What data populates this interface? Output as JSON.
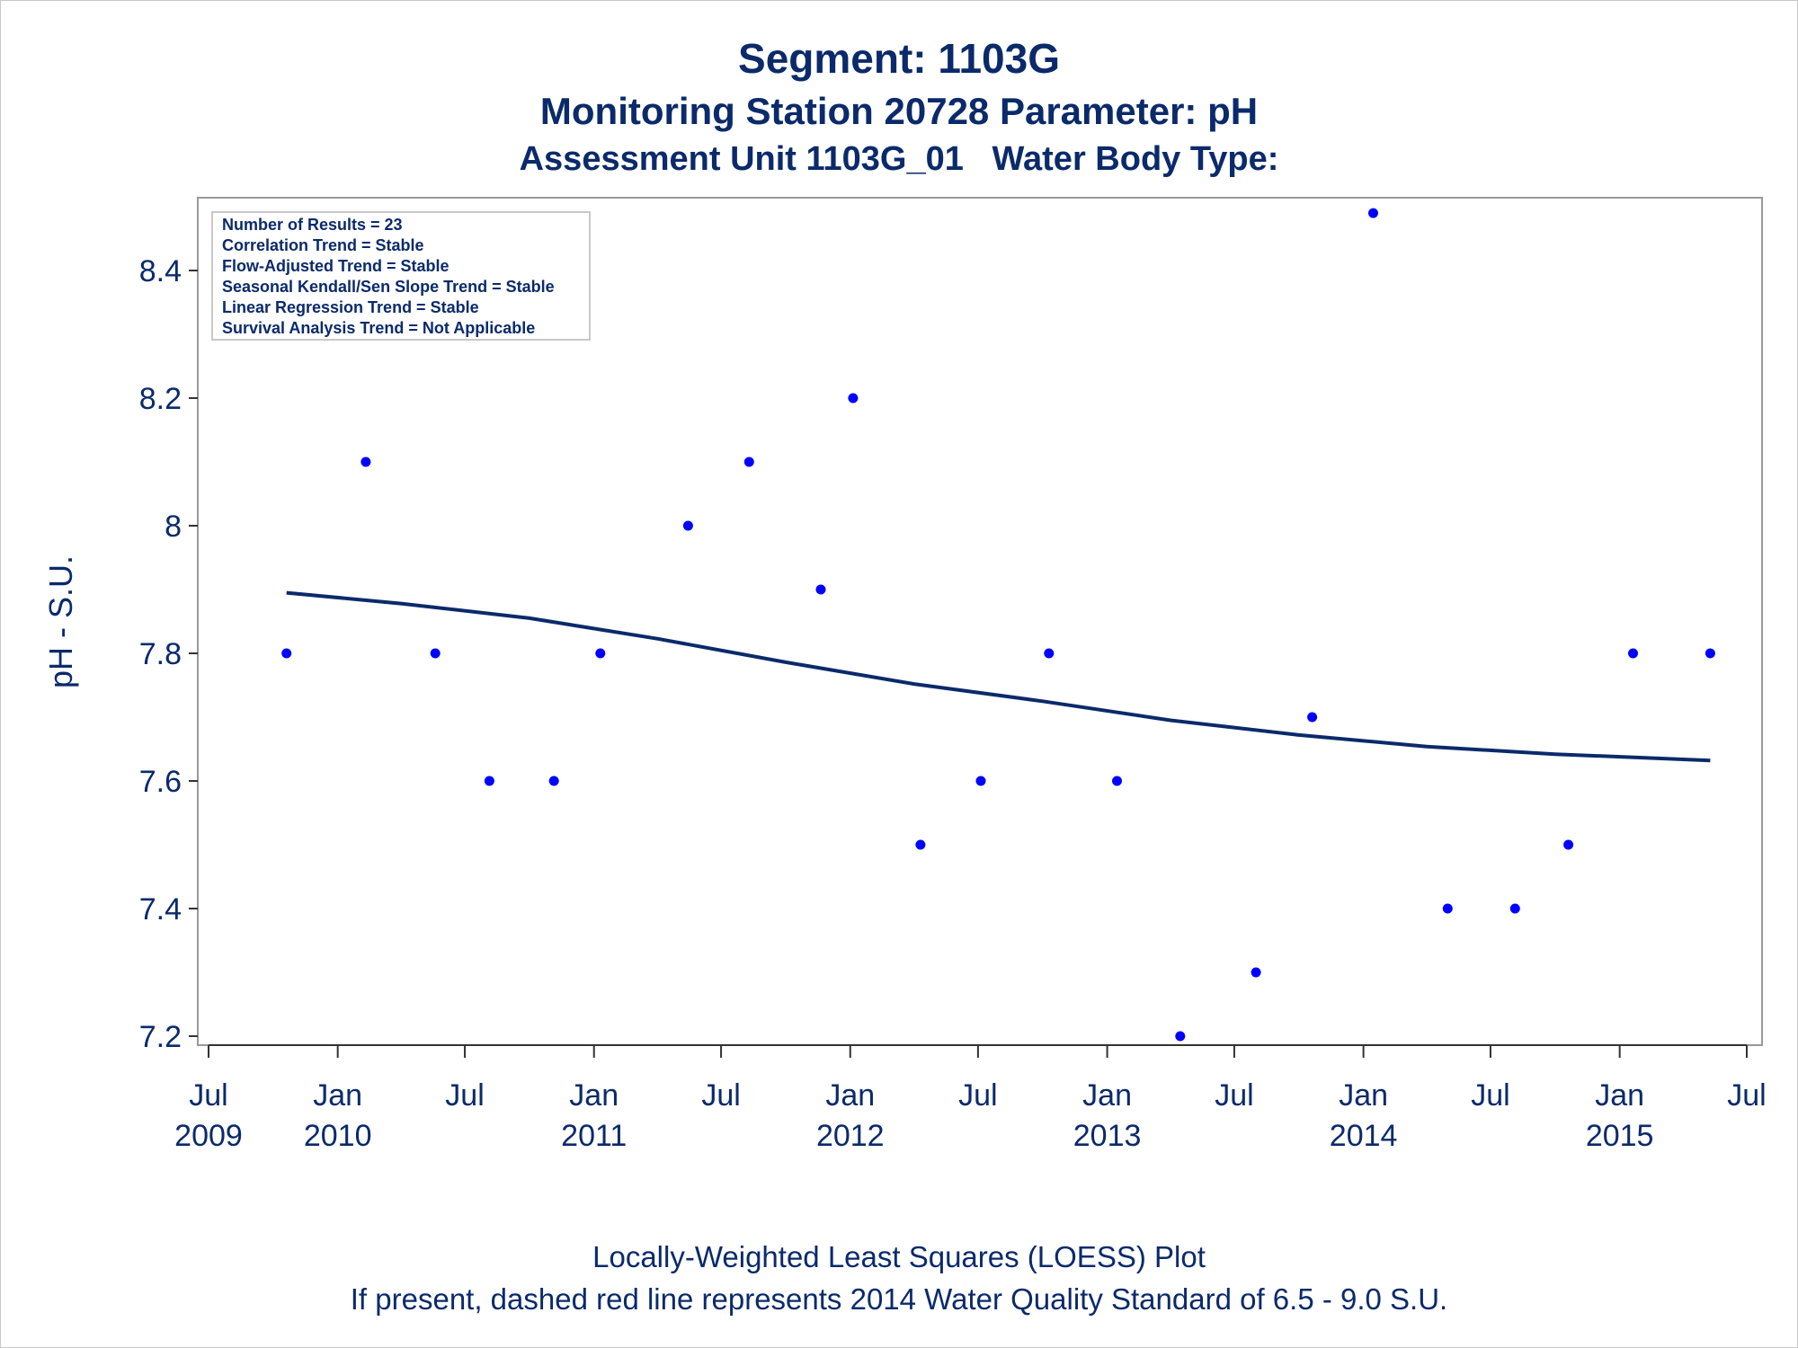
{
  "titles": {
    "line1": "Segment: 1103G",
    "line2": "Monitoring Station 20728 Parameter: pH",
    "line3": "Assessment Unit 1103G_01   Water Body Type:"
  },
  "footnotes": {
    "line1": "Locally-Weighted Least Squares (LOESS) Plot",
    "line2": "If present, dashed red line represents 2014 Water Quality Standard of 6.5 - 9.0 S.U."
  },
  "inset": {
    "lines": [
      "Number of Results = 23",
      "Correlation Trend = Stable",
      "Flow-Adjusted Trend = Stable",
      "Seasonal Kendall/Sen Slope Trend = Stable",
      "Linear Regression Trend = Stable",
      "Survival Analysis Trend = Not Applicable"
    ],
    "placement": "top-left"
  },
  "colors": {
    "text": "#0b2a6b",
    "points": "#0000ff",
    "loess": "#0b2a6b",
    "frame": "#999999"
  },
  "chart_data": {
    "type": "scatter",
    "ylabel": "pH - S.U.",
    "xlabel": "",
    "xlim": [
      "2009-07-01",
      "2015-07-01"
    ],
    "ylim": [
      7.18,
      8.52
    ],
    "grid": false,
    "y_ticks": [
      {
        "value": 7.2,
        "label": "7.2"
      },
      {
        "value": 7.4,
        "label": "7.4"
      },
      {
        "value": 7.6,
        "label": "7.6"
      },
      {
        "value": 7.8,
        "label": "7.8"
      },
      {
        "value": 8.0,
        "label": "8"
      },
      {
        "value": 8.2,
        "label": "8.2"
      },
      {
        "value": 8.4,
        "label": "8.4"
      }
    ],
    "x_ticks": [
      {
        "date": "2009-07-01",
        "month": "Jul",
        "year": "2009"
      },
      {
        "date": "2010-01-01",
        "month": "Jan",
        "year": "2010"
      },
      {
        "date": "2010-07-01",
        "month": "Jul",
        "year": ""
      },
      {
        "date": "2011-01-01",
        "month": "Jan",
        "year": "2011"
      },
      {
        "date": "2011-07-01",
        "month": "Jul",
        "year": ""
      },
      {
        "date": "2012-01-01",
        "month": "Jan",
        "year": "2012"
      },
      {
        "date": "2012-07-01",
        "month": "Jul",
        "year": ""
      },
      {
        "date": "2013-01-01",
        "month": "Jan",
        "year": "2013"
      },
      {
        "date": "2013-07-01",
        "month": "Jul",
        "year": ""
      },
      {
        "date": "2014-01-01",
        "month": "Jan",
        "year": "2014"
      },
      {
        "date": "2014-07-01",
        "month": "Jul",
        "year": ""
      },
      {
        "date": "2015-01-01",
        "month": "Jan",
        "year": "2015"
      },
      {
        "date": "2015-07-01",
        "month": "Jul",
        "year": ""
      }
    ],
    "series": [
      {
        "type": "scatter",
        "points": [
          {
            "x": "2009-10-20",
            "y": 7.8
          },
          {
            "x": "2010-02-10",
            "y": 8.1
          },
          {
            "x": "2010-05-20",
            "y": 7.8
          },
          {
            "x": "2010-08-05",
            "y": 7.6
          },
          {
            "x": "2010-11-05",
            "y": 7.6
          },
          {
            "x": "2011-01-10",
            "y": 7.8
          },
          {
            "x": "2011-05-15",
            "y": 8.0
          },
          {
            "x": "2011-08-10",
            "y": 8.1
          },
          {
            "x": "2011-11-20",
            "y": 7.9
          },
          {
            "x": "2012-01-05",
            "y": 8.2
          },
          {
            "x": "2012-04-10",
            "y": 7.5
          },
          {
            "x": "2012-07-05",
            "y": 7.6
          },
          {
            "x": "2012-10-10",
            "y": 7.8
          },
          {
            "x": "2013-01-15",
            "y": 7.6
          },
          {
            "x": "2013-04-15",
            "y": 7.2
          },
          {
            "x": "2013-08-01",
            "y": 7.3
          },
          {
            "x": "2013-10-20",
            "y": 7.7
          },
          {
            "x": "2014-01-15",
            "y": 8.49
          },
          {
            "x": "2014-05-01",
            "y": 7.4
          },
          {
            "x": "2014-08-05",
            "y": 7.4
          },
          {
            "x": "2014-10-20",
            "y": 7.5
          },
          {
            "x": "2015-01-20",
            "y": 7.8
          },
          {
            "x": "2015-05-10",
            "y": 7.8
          }
        ]
      },
      {
        "type": "line",
        "points": [
          {
            "x": "2009-10-20",
            "y": 7.895
          },
          {
            "x": "2010-04-01",
            "y": 7.878
          },
          {
            "x": "2010-10-01",
            "y": 7.855
          },
          {
            "x": "2011-04-01",
            "y": 7.823
          },
          {
            "x": "2011-10-01",
            "y": 7.786
          },
          {
            "x": "2012-04-01",
            "y": 7.752
          },
          {
            "x": "2012-10-01",
            "y": 7.725
          },
          {
            "x": "2013-04-01",
            "y": 7.695
          },
          {
            "x": "2013-10-01",
            "y": 7.672
          },
          {
            "x": "2014-04-01",
            "y": 7.654
          },
          {
            "x": "2014-10-01",
            "y": 7.642
          },
          {
            "x": "2015-05-10",
            "y": 7.632
          }
        ]
      }
    ]
  }
}
